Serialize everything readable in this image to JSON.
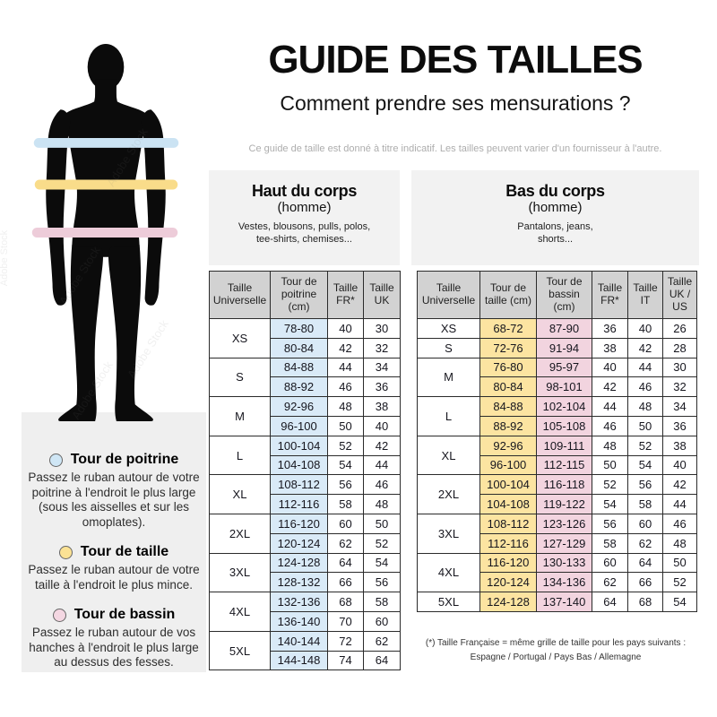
{
  "title": "GUIDE DES TAILLES",
  "subtitle": "Comment prendre ses mensurations ?",
  "disclaimer": "Ce guide de taille est donné à titre indicatif. Les tailles peuvent varier d'un fournisseur à l'autre.",
  "watermark": "Adobe Stock",
  "colors": {
    "chest_band": "#cbe3f3",
    "waist_band": "#f9dc8a",
    "hips_band": "#edccd9",
    "cell_blue": "#d9eaf7",
    "cell_yellow": "#fce4a1",
    "cell_pink": "#f2d4df",
    "header_gray": "#d2d2d2",
    "panel_gray": "#f2f2f2",
    "legend_gray": "#efefef"
  },
  "legend": [
    {
      "title": "Tour de poitrine",
      "text": "Passez le ruban autour de votre poitrine à l'endroit le plus large (sous les aisselles et sur les omoplates)."
    },
    {
      "title": "Tour de taille",
      "text": "Passez le ruban autour de votre taille à l'endroit le plus mince."
    },
    {
      "title": "Tour de bassin",
      "text": "Passez le ruban autour de vos hanches à l'endroit le plus large au dessus des fesses."
    }
  ],
  "upper_table": {
    "title": "Haut du corps",
    "gender": "(homme)",
    "items": [
      "Vestes, blousons, pulls, polos,",
      "tee-shirts, chemises..."
    ],
    "headers": [
      "Taille Universelle",
      "Tour de poitrine (cm)",
      "Taille FR*",
      "Taille UK"
    ],
    "highlight": {
      "0": "blue"
    },
    "groups": [
      {
        "size": "XS",
        "rows": [
          [
            "78-80",
            "40",
            "30"
          ],
          [
            "80-84",
            "42",
            "32"
          ]
        ]
      },
      {
        "size": "S",
        "rows": [
          [
            "84-88",
            "44",
            "34"
          ],
          [
            "88-92",
            "46",
            "36"
          ]
        ]
      },
      {
        "size": "M",
        "rows": [
          [
            "92-96",
            "48",
            "38"
          ],
          [
            "96-100",
            "50",
            "40"
          ]
        ]
      },
      {
        "size": "L",
        "rows": [
          [
            "100-104",
            "52",
            "42"
          ],
          [
            "104-108",
            "54",
            "44"
          ]
        ]
      },
      {
        "size": "XL",
        "rows": [
          [
            "108-112",
            "56",
            "46"
          ],
          [
            "112-116",
            "58",
            "48"
          ]
        ]
      },
      {
        "size": "2XL",
        "rows": [
          [
            "116-120",
            "60",
            "50"
          ],
          [
            "120-124",
            "62",
            "52"
          ]
        ]
      },
      {
        "size": "3XL",
        "rows": [
          [
            "124-128",
            "64",
            "54"
          ],
          [
            "128-132",
            "66",
            "56"
          ]
        ]
      },
      {
        "size": "4XL",
        "rows": [
          [
            "132-136",
            "68",
            "58"
          ],
          [
            "136-140",
            "70",
            "60"
          ]
        ]
      },
      {
        "size": "5XL",
        "rows": [
          [
            "140-144",
            "72",
            "62"
          ],
          [
            "144-148",
            "74",
            "64"
          ]
        ]
      }
    ]
  },
  "lower_table": {
    "title": "Bas du corps",
    "gender": "(homme)",
    "items": [
      "Pantalons, jeans,",
      "shorts..."
    ],
    "headers": [
      "Taille Universelle",
      "Tour de taille (cm)",
      "Tour de bassin (cm)",
      "Taille FR*",
      "Taille IT",
      "Taille UK / US"
    ],
    "highlight": {
      "0": "yellow",
      "1": "pink"
    },
    "groups": [
      {
        "size": "XS",
        "rows": [
          [
            "68-72",
            "87-90",
            "36",
            "40",
            "26"
          ]
        ]
      },
      {
        "size": "S",
        "rows": [
          [
            "72-76",
            "91-94",
            "38",
            "42",
            "28"
          ]
        ]
      },
      {
        "size": "M",
        "rows": [
          [
            "76-80",
            "95-97",
            "40",
            "44",
            "30"
          ],
          [
            "80-84",
            "98-101",
            "42",
            "46",
            "32"
          ]
        ]
      },
      {
        "size": "L",
        "rows": [
          [
            "84-88",
            "102-104",
            "44",
            "48",
            "34"
          ],
          [
            "88-92",
            "105-108",
            "46",
            "50",
            "36"
          ]
        ]
      },
      {
        "size": "XL",
        "rows": [
          [
            "92-96",
            "109-111",
            "48",
            "52",
            "38"
          ],
          [
            "96-100",
            "112-115",
            "50",
            "54",
            "40"
          ]
        ]
      },
      {
        "size": "2XL",
        "rows": [
          [
            "100-104",
            "116-118",
            "52",
            "56",
            "42"
          ],
          [
            "104-108",
            "119-122",
            "54",
            "58",
            "44"
          ]
        ]
      },
      {
        "size": "3XL",
        "rows": [
          [
            "108-112",
            "123-126",
            "56",
            "60",
            "46"
          ],
          [
            "112-116",
            "127-129",
            "58",
            "62",
            "48"
          ]
        ]
      },
      {
        "size": "4XL",
        "rows": [
          [
            "116-120",
            "130-133",
            "60",
            "64",
            "50"
          ],
          [
            "120-124",
            "134-136",
            "62",
            "66",
            "52"
          ]
        ]
      },
      {
        "size": "5XL",
        "rows": [
          [
            "124-128",
            "137-140",
            "64",
            "68",
            "54"
          ]
        ]
      }
    ]
  },
  "footnote_line1": "(*) Taille Française = même grille de taille pour les pays suivants :",
  "footnote_line2": "Espagne / Portugal / Pays Bas / Allemagne"
}
